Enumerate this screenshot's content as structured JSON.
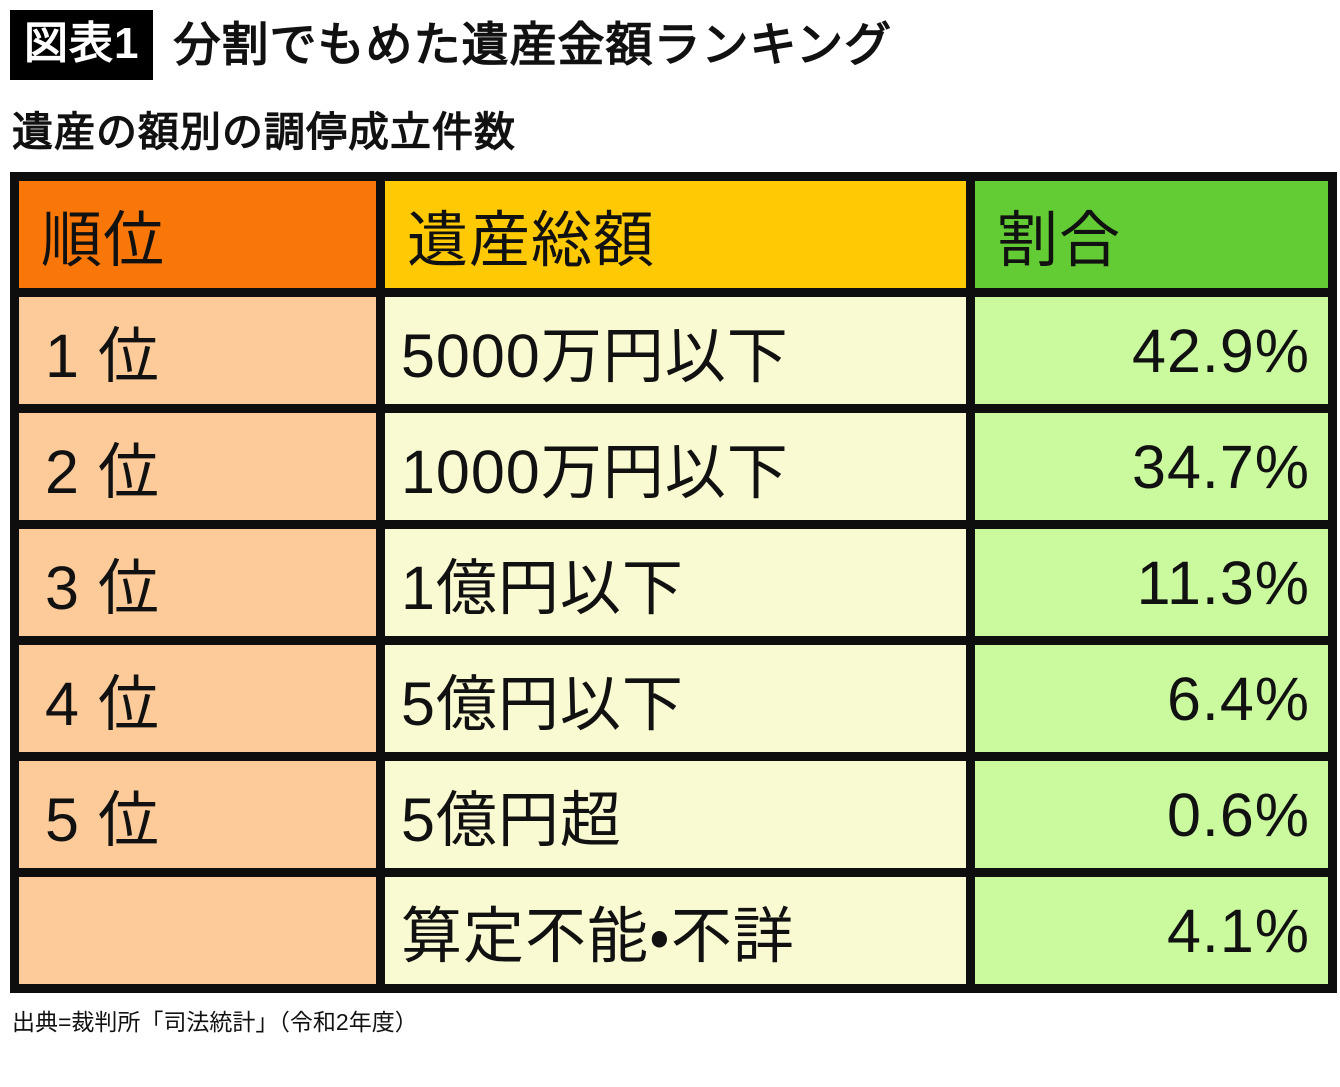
{
  "figure": {
    "tag": "図表1",
    "title": "分割でもめた遺産金額ランキング",
    "subtitle": "遺産の額別の調停成立件数",
    "source": "出典=裁判所「司法統計」（令和2年度）"
  },
  "table": {
    "headers": [
      {
        "label": "順位",
        "color": "#f97708"
      },
      {
        "label": "遺産総額",
        "color": "#ffc903"
      },
      {
        "label": "割合",
        "color": "#63cb33"
      }
    ],
    "rows": [
      {
        "rank": "1 位",
        "amount": "5000万円以下",
        "share": "42.9%"
      },
      {
        "rank": "2 位",
        "amount": "1000万円以下",
        "share": "34.7%"
      },
      {
        "rank": "3 位",
        "amount": "1億円以下",
        "share": "11.3%"
      },
      {
        "rank": "4 位",
        "amount": "5億円以下",
        "share": "6.4%"
      },
      {
        "rank": "5 位",
        "amount": "5億円超",
        "share": "0.6%"
      },
      {
        "rank": "",
        "amount": "算定不能・不詳",
        "share": "4.1%"
      }
    ],
    "cell_colors": {
      "rank": "#fdcb99",
      "amount": "#fafad2",
      "share": "#caf99e",
      "border": "#0e0e0e"
    }
  },
  "chart_data": {
    "type": "table",
    "title": "分割でもめた遺産金額ランキング",
    "subtitle": "遺産の額別の調停成立件数",
    "columns": [
      "順位",
      "遺産総額",
      "割合"
    ],
    "rows": [
      [
        "1 位",
        "5000万円以下",
        "42.9%"
      ],
      [
        "2 位",
        "1000万円以下",
        "34.7%"
      ],
      [
        "3 位",
        "1億円以下",
        "11.3%"
      ],
      [
        "4 位",
        "5億円以下",
        "6.4%"
      ],
      [
        "5 位",
        "5億円超",
        "0.6%"
      ],
      [
        "",
        "算定不能・不詳",
        "4.1%"
      ]
    ],
    "values_percent": [
      42.9,
      34.7,
      11.3,
      6.4,
      0.6,
      4.1
    ],
    "source": "出典=裁判所「司法統計」（令和2年度）"
  }
}
